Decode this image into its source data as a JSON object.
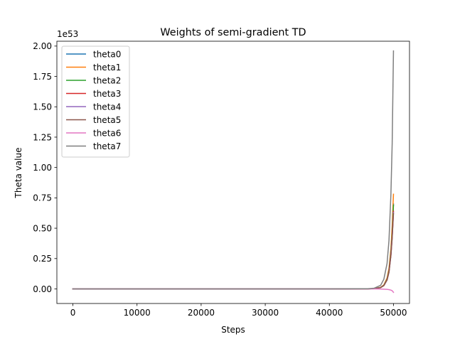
{
  "chart_data": {
    "type": "line",
    "title": "Weights of semi-gradient TD",
    "xlabel": "Steps",
    "ylabel": "Theta value",
    "y_offset_text": "1e53",
    "xlim": [
      -2500,
      52500
    ],
    "ylim": [
      -0.12,
      2.04
    ],
    "xticks": [
      0,
      10000,
      20000,
      30000,
      40000,
      50000
    ],
    "xtick_labels": [
      "0",
      "10000",
      "20000",
      "30000",
      "40000",
      "50000"
    ],
    "yticks": [
      0.0,
      0.25,
      0.5,
      0.75,
      1.0,
      1.25,
      1.5,
      1.75,
      2.0
    ],
    "ytick_labels": [
      "0.00",
      "0.25",
      "0.50",
      "0.75",
      "1.00",
      "1.25",
      "1.50",
      "1.75",
      "2.00"
    ],
    "grid": false,
    "legend_position": "top-left",
    "series": [
      {
        "name": "theta0",
        "color": "#1f77b4",
        "x": [
          0,
          10000,
          20000,
          30000,
          40000,
          46000,
          47000,
          48000,
          48500,
          49000,
          49300,
          49600,
          49800,
          50000
        ],
        "y": [
          0,
          0,
          0,
          0,
          0,
          0.0005,
          0.002,
          0.012,
          0.03,
          0.08,
          0.15,
          0.3,
          0.46,
          0.7
        ]
      },
      {
        "name": "theta1",
        "color": "#ff7f0e",
        "x": [
          0,
          10000,
          20000,
          30000,
          40000,
          46000,
          47000,
          48000,
          48500,
          49000,
          49300,
          49600,
          49800,
          50000
        ],
        "y": [
          0,
          0,
          0,
          0,
          0,
          0.0006,
          0.002,
          0.013,
          0.033,
          0.09,
          0.17,
          0.33,
          0.52,
          0.78
        ]
      },
      {
        "name": "theta2",
        "color": "#2ca02c",
        "x": [
          0,
          10000,
          20000,
          30000,
          40000,
          46000,
          47000,
          48000,
          48500,
          49000,
          49300,
          49600,
          49800,
          50000
        ],
        "y": [
          0,
          0,
          0,
          0,
          0,
          0.0005,
          0.002,
          0.012,
          0.03,
          0.08,
          0.15,
          0.3,
          0.46,
          0.69
        ]
      },
      {
        "name": "theta3",
        "color": "#d62728",
        "x": [
          0,
          10000,
          20000,
          30000,
          40000,
          46000,
          47000,
          48000,
          48500,
          49000,
          49300,
          49600,
          49800,
          50000
        ],
        "y": [
          0,
          0,
          0,
          0,
          0,
          0.0005,
          0.002,
          0.011,
          0.028,
          0.075,
          0.14,
          0.28,
          0.43,
          0.64
        ]
      },
      {
        "name": "theta4",
        "color": "#9467bd",
        "x": [
          0,
          10000,
          20000,
          30000,
          40000,
          46000,
          47000,
          48000,
          48500,
          49000,
          49300,
          49600,
          49800,
          50000
        ],
        "y": [
          0,
          0,
          0,
          0,
          0,
          0.0005,
          0.002,
          0.011,
          0.028,
          0.074,
          0.14,
          0.28,
          0.43,
          0.63
        ]
      },
      {
        "name": "theta5",
        "color": "#8c564b",
        "x": [
          0,
          10000,
          20000,
          30000,
          40000,
          46000,
          47000,
          48000,
          48500,
          49000,
          49300,
          49600,
          49800,
          50000
        ],
        "y": [
          0,
          0,
          0,
          0,
          0,
          0.0005,
          0.002,
          0.011,
          0.027,
          0.073,
          0.138,
          0.275,
          0.42,
          0.62
        ]
      },
      {
        "name": "theta6",
        "color": "#e377c2",
        "x": [
          0,
          10000,
          20000,
          30000,
          40000,
          45000,
          46000,
          47000,
          48000,
          48500,
          49000,
          49300,
          49600,
          49800,
          50000
        ],
        "y": [
          0,
          0,
          0,
          0,
          0,
          0,
          -0.0001,
          -0.0003,
          -0.001,
          -0.002,
          -0.004,
          -0.006,
          -0.01,
          -0.015,
          -0.028
        ]
      },
      {
        "name": "theta7",
        "color": "#7f7f7f",
        "x": [
          0,
          10000,
          20000,
          30000,
          40000,
          46000,
          47000,
          48000,
          48500,
          49000,
          49300,
          49600,
          49800,
          50000
        ],
        "y": [
          0,
          0,
          0,
          0,
          0,
          0.0015,
          0.006,
          0.03,
          0.08,
          0.21,
          0.4,
          0.78,
          1.2,
          1.96
        ]
      }
    ]
  }
}
